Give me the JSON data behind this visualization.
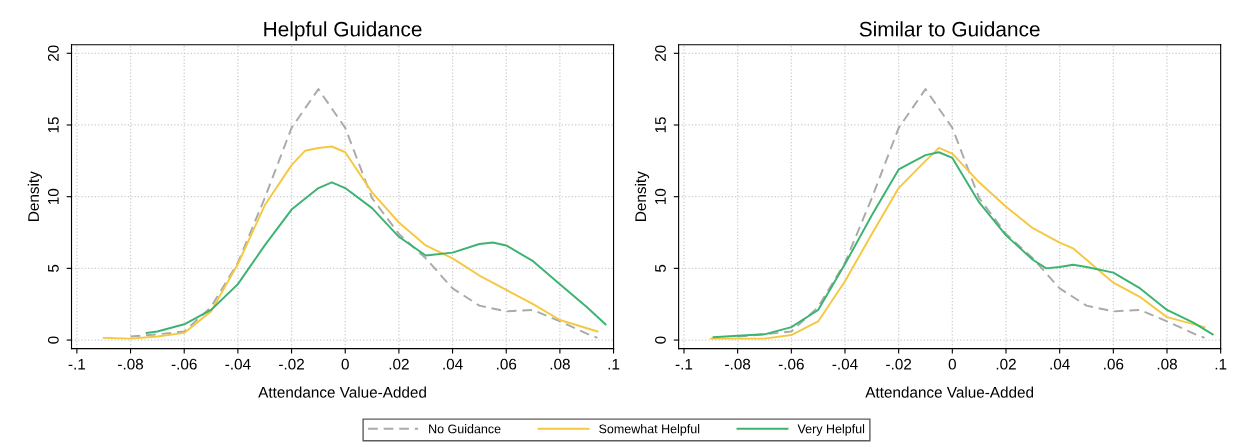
{
  "chart_data": [
    {
      "type": "line",
      "title": "Helpful Guidance",
      "xlabel": "Attendance Value-Added",
      "ylabel": "Density",
      "xlim": [
        -0.102,
        0.1
      ],
      "ylim": [
        -0.6,
        20.6
      ],
      "xticks": [
        {
          "value": -0.1,
          "label": "-.1"
        },
        {
          "value": -0.08,
          "label": "-.08"
        },
        {
          "value": -0.06,
          "label": "-.06"
        },
        {
          "value": -0.04,
          "label": "-.04"
        },
        {
          "value": -0.02,
          "label": "-.02"
        },
        0,
        {
          "value": 0.02,
          "label": ".02"
        },
        {
          "value": 0.04,
          "label": ".04"
        },
        {
          "value": 0.06,
          "label": ".06"
        },
        {
          "value": 0.08,
          "label": ".08"
        },
        {
          "value": 0.1,
          "label": ".1"
        }
      ],
      "yticks": [
        0,
        5,
        10,
        15,
        20
      ],
      "grid": true,
      "legend": "bottom",
      "series": [
        {
          "name": "No Guidance",
          "color": "#aaaaaa",
          "line_style": "dashed",
          "x": [
            -0.08,
            -0.07,
            -0.06,
            -0.05,
            -0.04,
            -0.03,
            -0.02,
            -0.01,
            0,
            0.01,
            0.02,
            0.03,
            0.04,
            0.05,
            0.06,
            0.07,
            0.08,
            0.09,
            0.094
          ],
          "values": [
            0.25,
            0.4,
            0.6,
            2.3,
            5.4,
            9.9,
            14.8,
            17.5,
            14.8,
            9.9,
            7.4,
            5.7,
            3.6,
            2.4,
            2.0,
            2.1,
            1.3,
            0.45,
            0.15
          ]
        },
        {
          "name": "Somewhat Helpful",
          "color": "#f5c842",
          "line_style": "solid",
          "x": [
            -0.09,
            -0.08,
            -0.07,
            -0.06,
            -0.05,
            -0.04,
            -0.03,
            -0.02,
            -0.015,
            -0.01,
            -0.005,
            0,
            0.01,
            0.02,
            0.03,
            0.04,
            0.05,
            0.06,
            0.07,
            0.08,
            0.094
          ],
          "values": [
            0.15,
            0.1,
            0.25,
            0.5,
            2.0,
            5.3,
            9.4,
            12.2,
            13.2,
            13.4,
            13.5,
            13.1,
            10.3,
            8.2,
            6.6,
            5.7,
            4.5,
            3.5,
            2.5,
            1.4,
            0.6
          ]
        },
        {
          "name": "Very Helpful",
          "color": "#3cb371",
          "line_style": "solid",
          "x": [
            -0.074,
            -0.07,
            -0.06,
            -0.05,
            -0.04,
            -0.03,
            -0.02,
            -0.01,
            -0.005,
            0,
            0.01,
            0.02,
            0.03,
            0.04,
            0.05,
            0.055,
            0.06,
            0.07,
            0.08,
            0.09,
            0.097
          ],
          "values": [
            0.5,
            0.6,
            1.1,
            2.1,
            3.9,
            6.6,
            9.1,
            10.6,
            11.0,
            10.6,
            9.2,
            7.2,
            5.9,
            6.1,
            6.7,
            6.8,
            6.6,
            5.5,
            3.9,
            2.3,
            1.1
          ]
        }
      ]
    },
    {
      "type": "line",
      "title": "Similar to Guidance",
      "xlabel": "Attendance Value-Added",
      "ylabel": "Density",
      "xlim": [
        -0.102,
        0.1
      ],
      "ylim": [
        -0.6,
        20.6
      ],
      "xticks": [
        {
          "value": -0.1,
          "label": "-.1"
        },
        {
          "value": -0.08,
          "label": "-.08"
        },
        {
          "value": -0.06,
          "label": "-.06"
        },
        {
          "value": -0.04,
          "label": "-.04"
        },
        {
          "value": -0.02,
          "label": "-.02"
        },
        0,
        {
          "value": 0.02,
          "label": ".02"
        },
        {
          "value": 0.04,
          "label": ".04"
        },
        {
          "value": 0.06,
          "label": ".06"
        },
        {
          "value": 0.08,
          "label": ".08"
        },
        {
          "value": 0.1,
          "label": ".1"
        }
      ],
      "yticks": [
        0,
        5,
        10,
        15,
        20
      ],
      "grid": true,
      "series": [
        {
          "color": "#aaaaaa",
          "line_style": "dashed",
          "x": [
            -0.08,
            -0.07,
            -0.06,
            -0.05,
            -0.04,
            -0.03,
            -0.02,
            -0.01,
            0,
            0.01,
            0.02,
            0.03,
            0.04,
            0.05,
            0.06,
            0.07,
            0.08,
            0.09,
            0.094
          ],
          "values": [
            0.25,
            0.4,
            0.6,
            2.3,
            5.4,
            9.9,
            14.8,
            17.5,
            14.8,
            9.9,
            7.4,
            5.7,
            3.6,
            2.4,
            2.0,
            2.1,
            1.3,
            0.45,
            0.15
          ]
        },
        {
          "color": "#f5c842",
          "line_style": "solid",
          "x": [
            -0.09,
            -0.08,
            -0.07,
            -0.06,
            -0.05,
            -0.04,
            -0.03,
            -0.02,
            -0.01,
            -0.005,
            0,
            0.01,
            0.02,
            0.03,
            0.04,
            0.045,
            0.05,
            0.06,
            0.07,
            0.08,
            0.094
          ],
          "values": [
            0.1,
            0.1,
            0.1,
            0.35,
            1.3,
            4.1,
            7.4,
            10.6,
            12.5,
            13.4,
            13.0,
            11.0,
            9.3,
            7.8,
            6.8,
            6.4,
            5.6,
            4.0,
            3.0,
            1.6,
            0.9
          ]
        },
        {
          "color": "#3cb371",
          "line_style": "solid",
          "x": [
            -0.089,
            -0.08,
            -0.07,
            -0.06,
            -0.05,
            -0.04,
            -0.03,
            -0.02,
            -0.01,
            -0.005,
            0,
            0.01,
            0.02,
            0.03,
            0.035,
            0.04,
            0.045,
            0.05,
            0.06,
            0.07,
            0.08,
            0.09,
            0.097
          ],
          "values": [
            0.2,
            0.3,
            0.4,
            0.9,
            2.1,
            5.3,
            8.7,
            11.9,
            12.9,
            13.1,
            12.7,
            9.6,
            7.3,
            5.6,
            5.0,
            5.1,
            5.25,
            5.1,
            4.7,
            3.6,
            2.1,
            1.2,
            0.4
          ]
        }
      ]
    }
  ]
}
